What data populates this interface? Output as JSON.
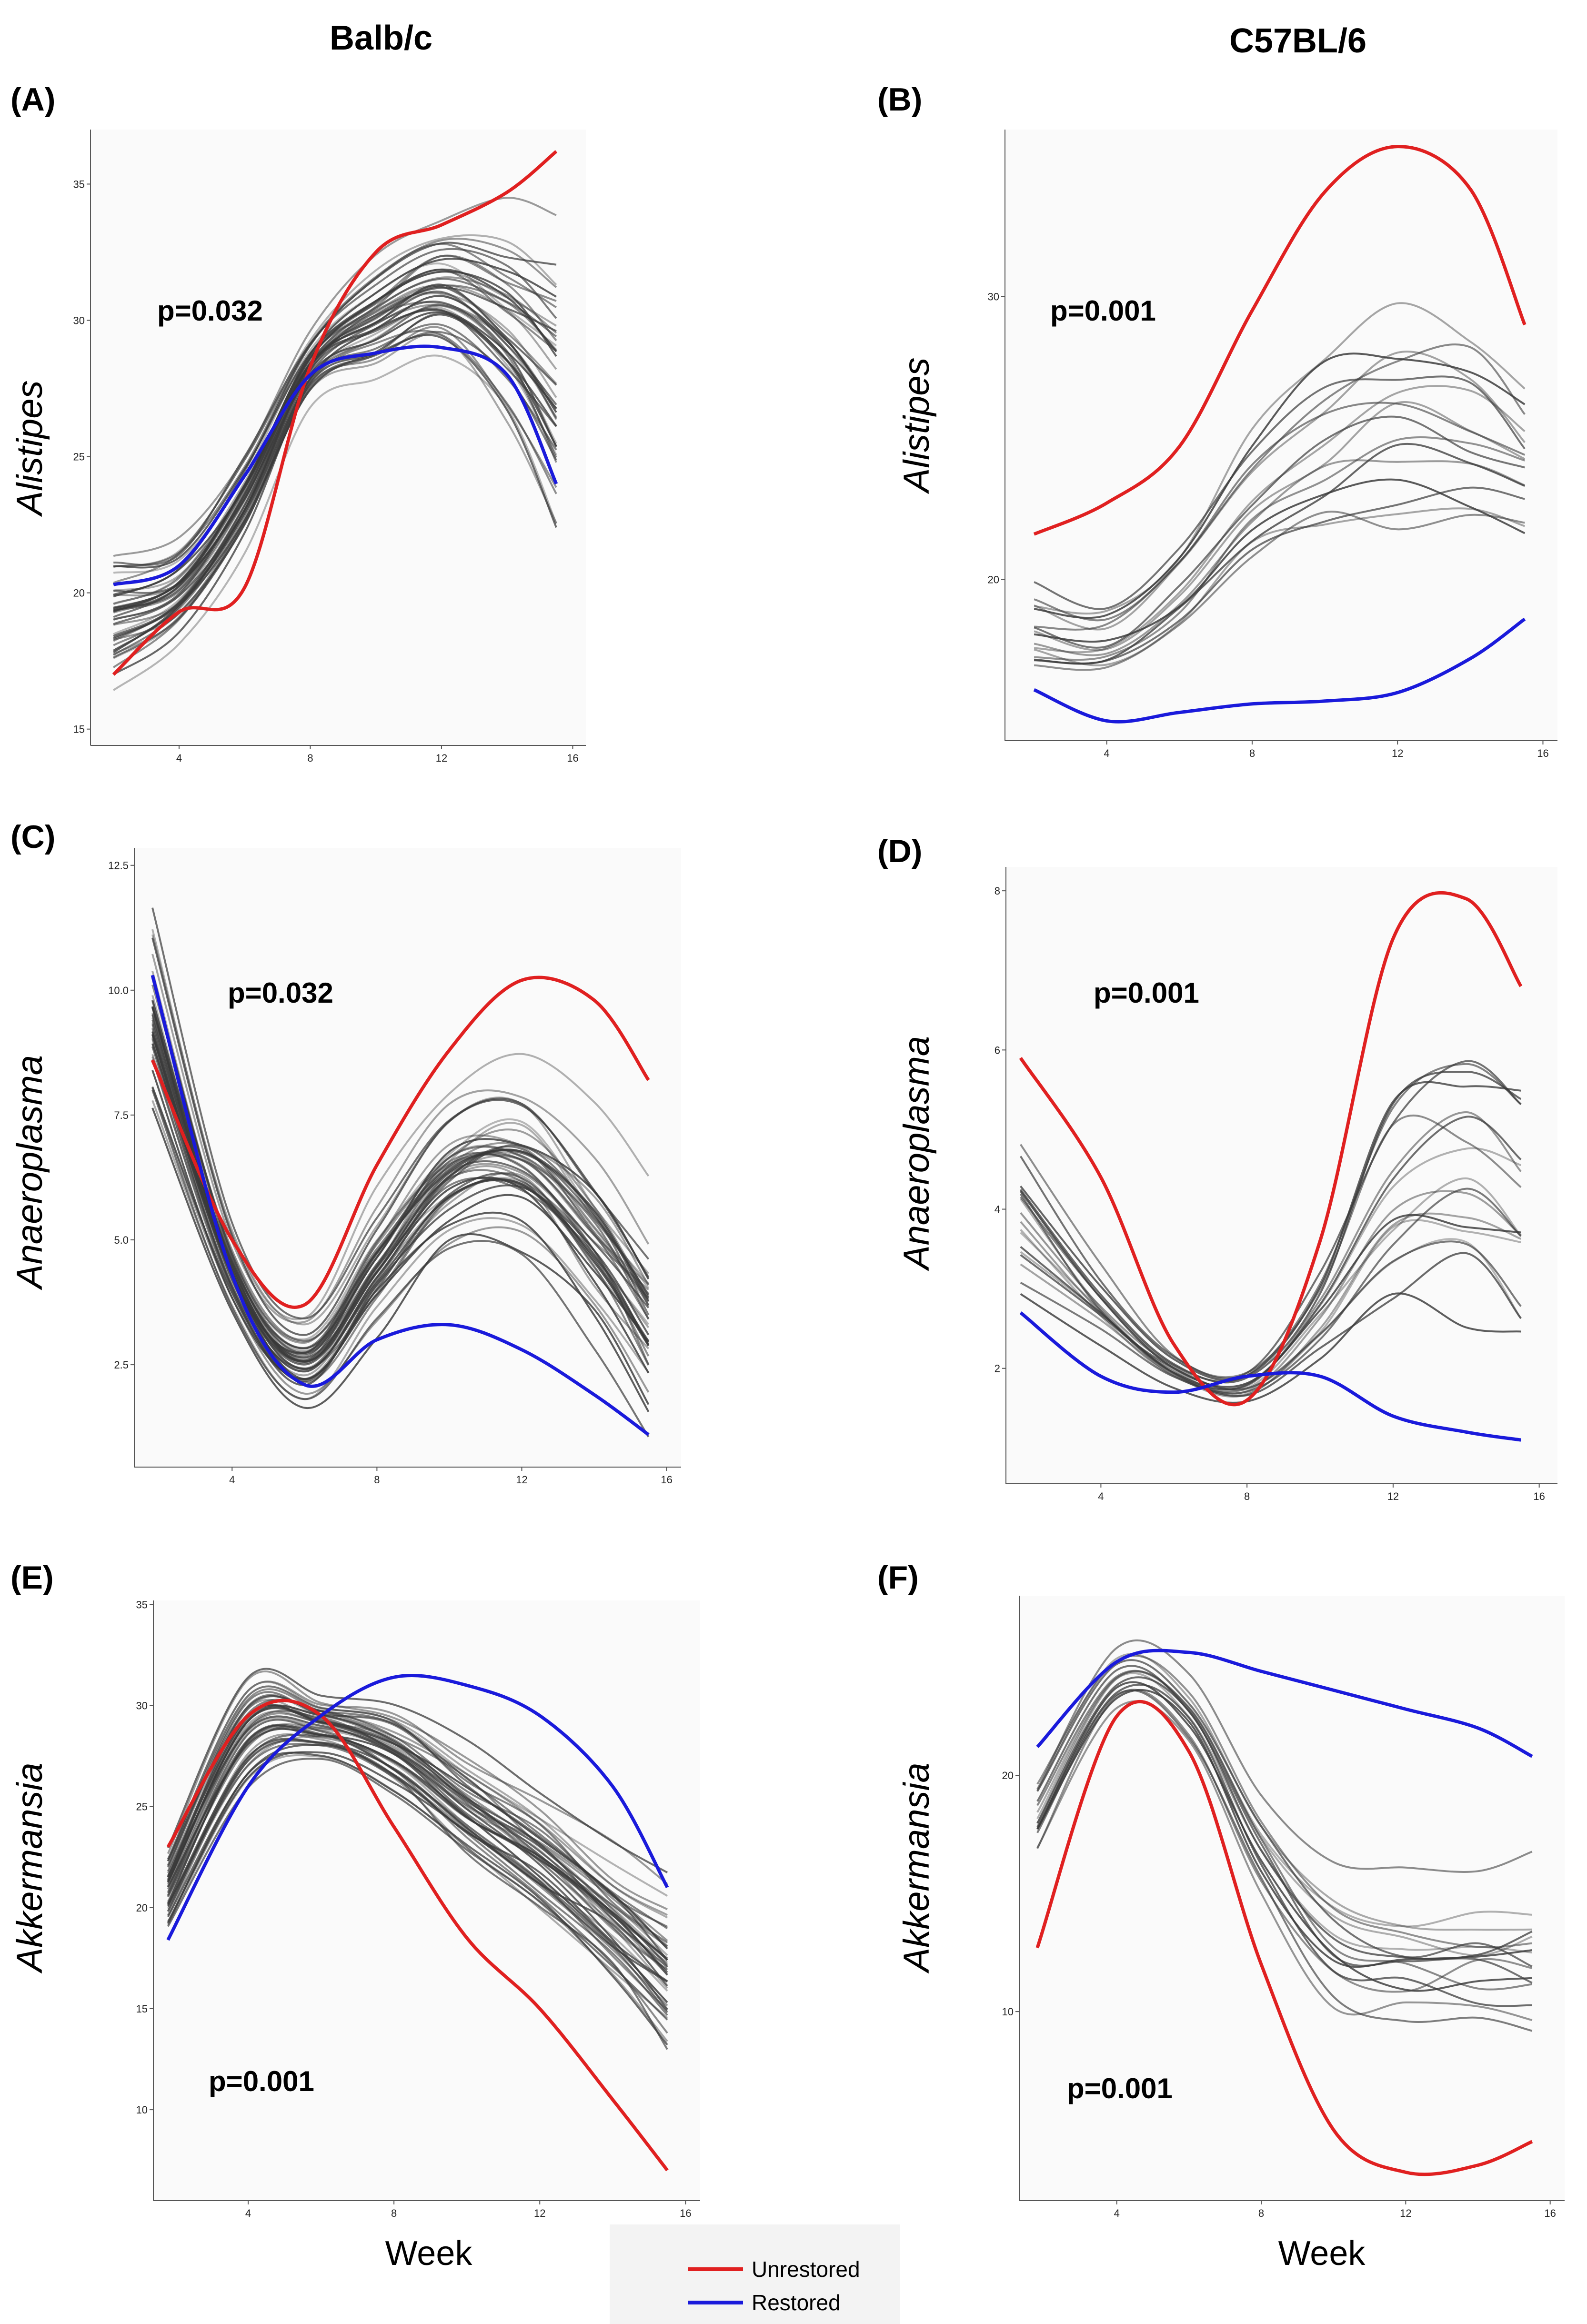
{
  "figure": {
    "column_titles": [
      "Balb/c",
      "C57BL/6"
    ],
    "x_title": "Week",
    "legend": [
      {
        "label": "Unrestored",
        "color": "#e02020"
      },
      {
        "label": "Restored",
        "color": "#1a1adb"
      }
    ],
    "background_color": "#fafafa"
  },
  "chart_data": [
    {
      "type": "line",
      "panel": "(A)",
      "strain": "Balb/c",
      "genus": "Alistipes",
      "pvalue": "p=0.032",
      "xlim": [
        1.3,
        16.4
      ],
      "ylim": [
        14.4,
        37.0
      ],
      "xticks": [
        4,
        8,
        12,
        16
      ],
      "yticks": [
        15,
        20,
        25,
        30,
        35
      ],
      "ytick_labels": [
        "15",
        "20",
        "25",
        "30",
        "35"
      ],
      "x": [
        2,
        4,
        6,
        8,
        10,
        12,
        14,
        15.5
      ],
      "series": [
        {
          "name": "Unrestored",
          "color": "#e02020",
          "values": [
            17,
            19.3,
            20.2,
            28.3,
            32.5,
            33.5,
            34.7,
            36.2
          ]
        },
        {
          "name": "Restored",
          "color": "#1a1adb",
          "values": [
            20.3,
            21.0,
            24.3,
            28.0,
            28.8,
            29.0,
            28.0,
            24.0
          ]
        }
      ],
      "band": {
        "count": 44,
        "color": "#3a3a3a",
        "mean": [
          19.2,
          20.2,
          23.6,
          28.4,
          30.2,
          31.3,
          30.0,
          28.0
        ],
        "spread": [
          1.9,
          1.4,
          1.3,
          1.0,
          1.6,
          1.9,
          3.0,
          4.0
        ]
      }
    },
    {
      "type": "line",
      "panel": "(B)",
      "strain": "C57BL/6",
      "genus": "Alistipes",
      "pvalue": "p=0.001",
      "xlim": [
        1.2,
        16.4
      ],
      "ylim": [
        14.3,
        35.9
      ],
      "xticks": [
        4,
        8,
        12,
        16
      ],
      "yticks": [
        20,
        30
      ],
      "ytick_labels": [
        "20",
        "30"
      ],
      "x": [
        2,
        4,
        6,
        8,
        10,
        12,
        14,
        15.5
      ],
      "series": [
        {
          "name": "Unrestored",
          "color": "#e02020",
          "values": [
            21.6,
            22.7,
            24.7,
            29.5,
            33.7,
            35.3,
            33.8,
            29.0
          ]
        },
        {
          "name": "Restored",
          "color": "#1a1adb",
          "values": [
            16.1,
            15.0,
            15.3,
            15.6,
            15.7,
            16.0,
            17.2,
            18.6
          ]
        }
      ],
      "band": {
        "count": 16,
        "color": "#3a3a3a",
        "mean": [
          18.0,
          17.6,
          19.3,
          22.4,
          24.0,
          24.8,
          24.7,
          23.6
        ],
        "spread": [
          1.6,
          1.4,
          1.8,
          2.7,
          3.7,
          4.2,
          3.3,
          2.5
        ]
      }
    },
    {
      "type": "line",
      "panel": "(C)",
      "strain": "Balb/c",
      "genus": "Anaeroplasma",
      "pvalue": "p=0.032",
      "xlim": [
        1.3,
        16.4
      ],
      "ylim": [
        0.45,
        12.85
      ],
      "xticks": [
        4,
        8,
        12,
        16
      ],
      "yticks": [
        2.5,
        5.0,
        7.5,
        10.0,
        12.5
      ],
      "ytick_labels": [
        "2.5",
        "5.0",
        "7.5",
        "10.0",
        "12.5"
      ],
      "x": [
        1.8,
        4,
        6,
        8,
        10,
        12,
        14,
        15.5
      ],
      "series": [
        {
          "name": "Unrestored",
          "color": "#e02020",
          "values": [
            8.6,
            5.0,
            3.7,
            6.5,
            8.8,
            10.2,
            9.8,
            8.2
          ]
        },
        {
          "name": "Restored",
          "color": "#1a1adb",
          "values": [
            10.3,
            4.3,
            2.1,
            3.0,
            3.3,
            2.8,
            1.9,
            1.1
          ]
        }
      ],
      "band": {
        "count": 44,
        "color": "#3a3a3a",
        "mean": [
          9.5,
          4.4,
          2.6,
          4.5,
          6.3,
          6.5,
          5.0,
          3.4
        ],
        "spread": [
          1.5,
          0.7,
          0.7,
          1.1,
          1.4,
          1.6,
          1.7,
          1.8
        ]
      }
    },
    {
      "type": "line",
      "panel": "(D)",
      "strain": "C57BL/6",
      "genus": "Anaeroplasma",
      "pvalue": "p=0.001",
      "xlim": [
        1.4,
        16.5
      ],
      "ylim": [
        0.55,
        8.3
      ],
      "xticks": [
        4,
        8,
        12,
        16
      ],
      "yticks": [
        2,
        4,
        6,
        8
      ],
      "ytick_labels": [
        "2",
        "4",
        "6",
        "8"
      ],
      "x": [
        1.8,
        4,
        6,
        8,
        10,
        12,
        14,
        15.5
      ],
      "series": [
        {
          "name": "Unrestored",
          "color": "#e02020",
          "values": [
            5.9,
            4.4,
            2.3,
            1.6,
            3.6,
            7.4,
            7.9,
            6.8
          ]
        },
        {
          "name": "Restored",
          "color": "#1a1adb",
          "values": [
            2.7,
            1.9,
            1.7,
            1.9,
            1.9,
            1.4,
            1.2,
            1.1
          ]
        }
      ],
      "band": {
        "count": 18,
        "color": "#3a3a3a",
        "mean": [
          3.9,
          2.8,
          2.0,
          1.8,
          2.7,
          4.2,
          4.6,
          4.1
        ],
        "spread": [
          1.0,
          0.5,
          0.25,
          0.25,
          0.6,
          1.6,
          1.9,
          1.7
        ]
      }
    },
    {
      "type": "line",
      "panel": "(E)",
      "strain": "Balb/c",
      "genus": "Akkermansia",
      "pvalue": "p=0.001",
      "xlim": [
        1.4,
        16.4
      ],
      "ylim": [
        5.5,
        35.2
      ],
      "xticks": [
        4,
        8,
        12,
        16
      ],
      "yticks": [
        10,
        15,
        20,
        25,
        30,
        35
      ],
      "ytick_labels": [
        "10",
        "15",
        "20",
        "25",
        "30",
        "35"
      ],
      "x": [
        1.8,
        4,
        6,
        8,
        10,
        12,
        14,
        15.5
      ],
      "series": [
        {
          "name": "Unrestored",
          "color": "#e02020",
          "values": [
            23.0,
            29.5,
            29.5,
            24.0,
            18.5,
            15.0,
            10.5,
            7.0
          ]
        },
        {
          "name": "Restored",
          "color": "#1a1adb",
          "values": [
            18.4,
            26.0,
            29.5,
            31.4,
            31.0,
            29.5,
            26.0,
            21.0
          ]
        }
      ],
      "band": {
        "count": 44,
        "color": "#3a3a3a",
        "mean": [
          21.0,
          28.8,
          29.0,
          27.8,
          25.0,
          22.5,
          19.5,
          17.0
        ],
        "spread": [
          1.6,
          2.2,
          1.3,
          1.8,
          2.3,
          2.6,
          2.7,
          3.4
        ]
      }
    },
    {
      "type": "line",
      "panel": "(F)",
      "strain": "C57BL/6",
      "genus": "Akkermansia",
      "pvalue": "p=0.001",
      "xlim": [
        1.3,
        16.4
      ],
      "ylim": [
        2.0,
        27.6
      ],
      "xticks": [
        4,
        8,
        12,
        16
      ],
      "yticks": [
        10,
        20
      ],
      "ytick_labels": [
        "10",
        "20"
      ],
      "x": [
        1.8,
        4,
        6,
        8,
        10,
        12,
        14,
        15.5
      ],
      "series": [
        {
          "name": "Unrestored",
          "color": "#e02020",
          "values": [
            12.7,
            22.5,
            21.0,
            12.0,
            5.0,
            3.2,
            3.5,
            4.5
          ]
        },
        {
          "name": "Restored",
          "color": "#1a1adb",
          "values": [
            21.2,
            24.8,
            25.2,
            24.4,
            23.6,
            22.8,
            22.0,
            20.8
          ]
        }
      ],
      "band": {
        "count": 16,
        "color": "#3a3a3a",
        "mean": [
          18.0,
          23.8,
          22.4,
          16.5,
          12.5,
          11.8,
          11.8,
          12.0
        ],
        "spread": [
          1.6,
          1.4,
          1.6,
          2.8,
          3.8,
          3.4,
          3.3,
          3.4
        ]
      }
    }
  ]
}
